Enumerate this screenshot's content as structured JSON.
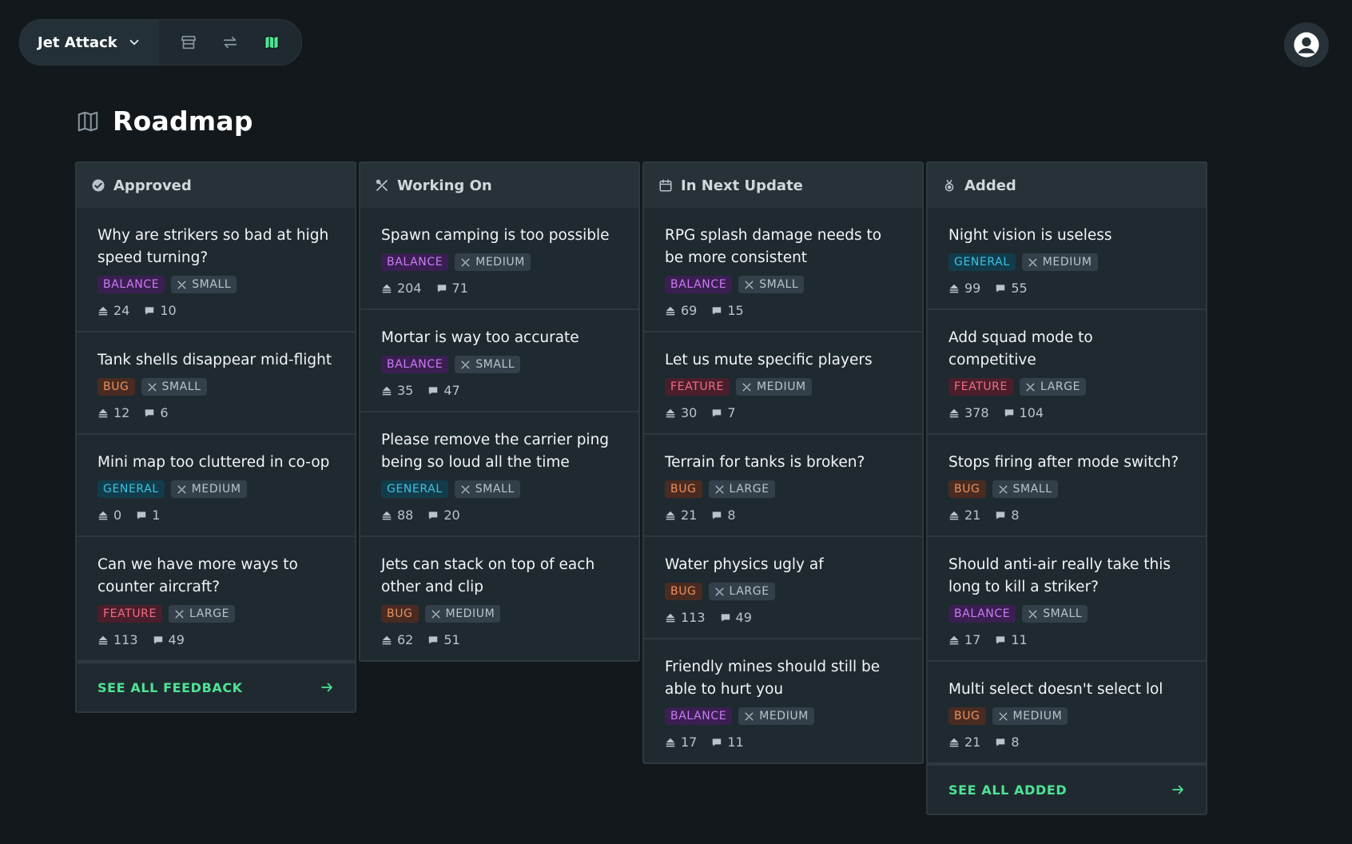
{
  "topbar": {
    "project": "Jet Attack",
    "icons": [
      "store-icon",
      "swap-icon",
      "map-icon"
    ]
  },
  "page": {
    "title": "Roadmap"
  },
  "columns": [
    {
      "title": "Approved",
      "icon": "check-circle-icon",
      "footer": "SEE ALL FEEDBACK",
      "cards": [
        {
          "title": "Why are strikers so bad at high speed turning?",
          "type": "BALANCE",
          "size": "SMALL",
          "votes": "24",
          "comments": "10"
        },
        {
          "title": "Tank shells disappear mid-flight",
          "type": "BUG",
          "size": "SMALL",
          "votes": "12",
          "comments": "6"
        },
        {
          "title": "Mini map too cluttered in co-op",
          "type": "GENERAL",
          "size": "MEDIUM",
          "votes": "0",
          "comments": "1"
        },
        {
          "title": "Can we have more ways to counter aircraft?",
          "type": "FEATURE",
          "size": "LARGE",
          "votes": "113",
          "comments": "49"
        }
      ]
    },
    {
      "title": "Working On",
      "icon": "tools-icon",
      "footer": "",
      "cards": [
        {
          "title": "Spawn camping is too possible",
          "type": "BALANCE",
          "size": "MEDIUM",
          "votes": "204",
          "comments": "71"
        },
        {
          "title": "Mortar is way too accurate",
          "type": "BALANCE",
          "size": "SMALL",
          "votes": "35",
          "comments": "47"
        },
        {
          "title": "Please remove the carrier ping being so loud all the time",
          "type": "GENERAL",
          "size": "SMALL",
          "votes": "88",
          "comments": "20"
        },
        {
          "title": "Jets can stack on top of each other and clip",
          "type": "BUG",
          "size": "MEDIUM",
          "votes": "62",
          "comments": "51"
        }
      ]
    },
    {
      "title": "In Next Update",
      "icon": "calendar-icon",
      "footer": "",
      "cards": [
        {
          "title": "RPG splash damage needs to be more consistent",
          "type": "BALANCE",
          "size": "SMALL",
          "votes": "69",
          "comments": "15"
        },
        {
          "title": "Let us mute specific players",
          "type": "FEATURE",
          "size": "MEDIUM",
          "votes": "30",
          "comments": "7"
        },
        {
          "title": "Terrain for tanks is broken?",
          "type": "BUG",
          "size": "LARGE",
          "votes": "21",
          "comments": "8"
        },
        {
          "title": "Water physics ugly af",
          "type": "BUG",
          "size": "LARGE",
          "votes": "113",
          "comments": "49"
        },
        {
          "title": "Friendly mines should still be able to hurt you",
          "type": "BALANCE",
          "size": "MEDIUM",
          "votes": "17",
          "comments": "11"
        }
      ]
    },
    {
      "title": "Added",
      "icon": "medal-icon",
      "footer": "SEE ALL ADDED",
      "cards": [
        {
          "title": "Night vision is useless",
          "type": "GENERAL",
          "size": "MEDIUM",
          "votes": "99",
          "comments": "55"
        },
        {
          "title": "Add squad mode to competitive",
          "type": "FEATURE",
          "size": "LARGE",
          "votes": "378",
          "comments": "104"
        },
        {
          "title": "Stops firing after mode switch?",
          "type": "BUG",
          "size": "SMALL",
          "votes": "21",
          "comments": "8"
        },
        {
          "title": "Should anti-air really take this long to kill a striker?",
          "type": "BALANCE",
          "size": "SMALL",
          "votes": "17",
          "comments": "11"
        },
        {
          "title": "Multi select doesn't select lol",
          "type": "BUG",
          "size": "MEDIUM",
          "votes": "21",
          "comments": "8"
        }
      ]
    }
  ]
}
